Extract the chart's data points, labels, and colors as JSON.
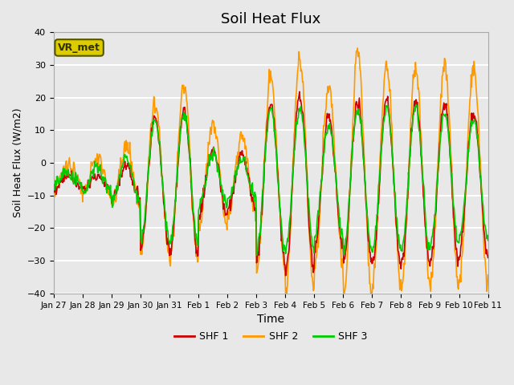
{
  "title": "Soil Heat Flux",
  "xlabel": "Time",
  "ylabel": "Soil Heat Flux (W/m2)",
  "ylim": [
    -40,
    40
  ],
  "yticks": [
    -40,
    -30,
    -20,
    -10,
    0,
    10,
    20,
    30,
    40
  ],
  "background_color": "#e8e8e8",
  "plot_bg_color": "#e8e8e8",
  "grid_color": "white",
  "line_colors": {
    "SHF 1": "#cc0000",
    "SHF 2": "#ff9900",
    "SHF 3": "#00cc00"
  },
  "line_widths": {
    "SHF 1": 1.2,
    "SHF 2": 1.2,
    "SHF 3": 1.2
  },
  "annotation_text": "VR_met",
  "annotation_box_color": "#ddcc00",
  "annotation_border_color": "#555500",
  "tick_labels": [
    "Jan 27",
    "Jan 28",
    "Jan 29",
    "Jan 30",
    "Jan 31",
    "Feb 1",
    "Feb 2",
    "Feb 3",
    "Feb 4",
    "Feb 5",
    "Feb 6",
    "Feb 7",
    "Feb 8",
    "Feb 9",
    "Feb 10",
    "Feb 11"
  ],
  "days": 15,
  "pts_per_day": 48
}
